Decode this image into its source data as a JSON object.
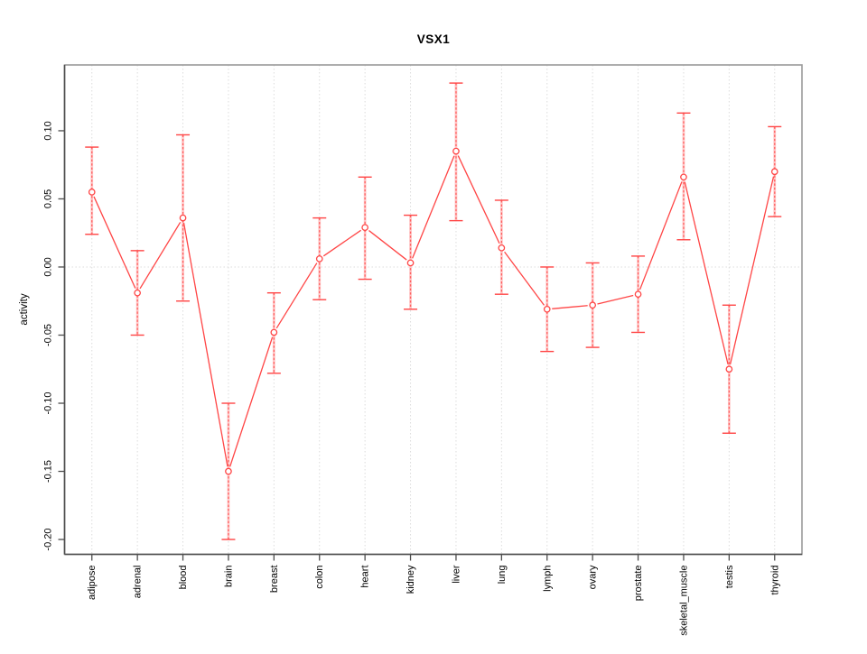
{
  "figure": {
    "background": "#ffffff"
  },
  "chart_data": {
    "type": "line",
    "title": "VSX1",
    "ylabel": "activity",
    "xlabel": "",
    "legend": "none",
    "marker": "open-circle",
    "grid": "vertical dotted gridline per category, dotted horizontal line at zero",
    "categories": [
      "adipose",
      "adrenal",
      "blood",
      "brain",
      "breast",
      "colon",
      "heart",
      "kidney",
      "liver",
      "lung",
      "lymph",
      "ovary",
      "prostate",
      "skeletal_muscle",
      "testis",
      "thyroid"
    ],
    "series": [
      {
        "name": "activity",
        "values": [
          0.055,
          -0.019,
          0.036,
          -0.15,
          -0.048,
          0.006,
          0.029,
          0.003,
          0.085,
          0.014,
          -0.031,
          -0.028,
          -0.02,
          0.066,
          -0.075,
          0.07
        ],
        "ci_upper": [
          0.088,
          0.012,
          0.097,
          -0.1,
          -0.019,
          0.036,
          0.066,
          0.038,
          0.135,
          0.049,
          0.0,
          0.003,
          0.008,
          0.113,
          -0.028,
          0.103
        ],
        "ci_lower": [
          0.024,
          -0.05,
          -0.025,
          -0.2,
          -0.078,
          -0.024,
          -0.009,
          -0.031,
          0.034,
          -0.02,
          -0.062,
          -0.059,
          -0.048,
          0.02,
          -0.122,
          0.037
        ]
      }
    ],
    "ylim": [
      -0.2109,
      0.1483
    ],
    "yticks": [
      -0.2,
      -0.15,
      -0.1,
      -0.05,
      0.0,
      0.05,
      0.1
    ],
    "ytick_labels": [
      "-0.20",
      "-0.15",
      "-0.10",
      "-0.05",
      "0.00",
      "0.05",
      "0.10"
    ],
    "colors": {
      "series_line": "#ff4545",
      "marker_stroke": "#ff4545",
      "marker_fill": "#ffffff",
      "error_bar_halo": "#ffc9c9",
      "error_bar_core": "#ff6161",
      "error_bar_cap": "#ff4545",
      "gridline": "#dcdcdc",
      "box_light": "#9a9a9a",
      "axis_dark": "#4d4d4d",
      "tick_label": "#000000"
    }
  }
}
